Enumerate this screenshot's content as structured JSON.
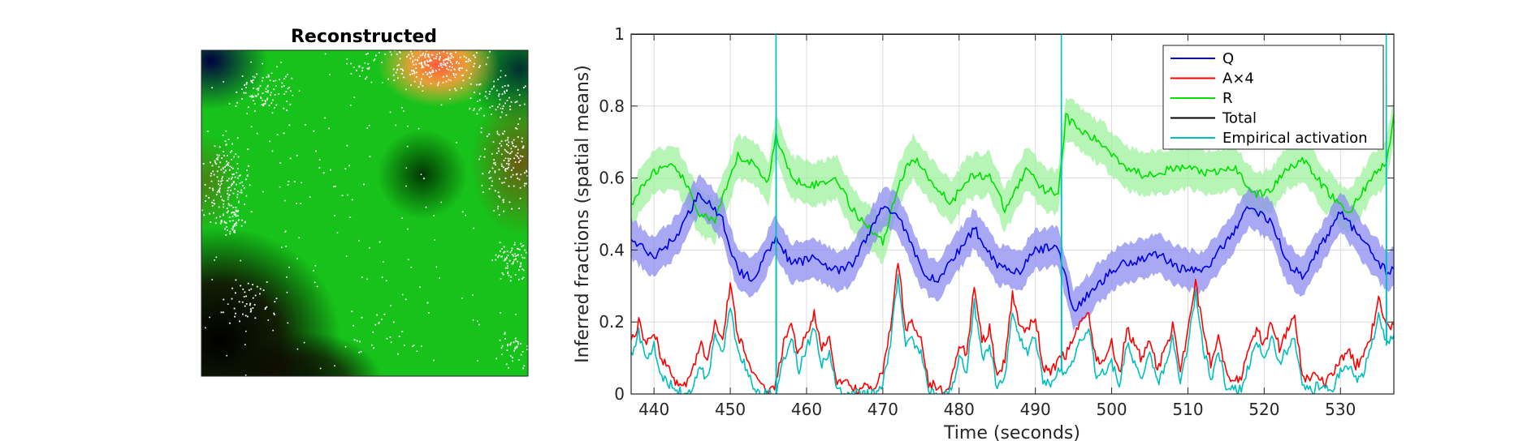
{
  "left_panel": {
    "title": "Reconstructed",
    "colors": {
      "dominant": "#17c21a",
      "hotspot": "#ff7a3a",
      "dark": "#000000",
      "dots": "#ffffff"
    }
  },
  "chart_data": {
    "type": "line",
    "xlabel": "Time (seconds)",
    "ylabel": "Inferred fractions (spatial means)",
    "xlim": [
      437,
      537
    ],
    "ylim": [
      0,
      1
    ],
    "xticks": [
      440,
      450,
      460,
      470,
      480,
      490,
      500,
      510,
      520,
      530
    ],
    "yticks": [
      0,
      0.2,
      0.4,
      0.6,
      0.8,
      1
    ],
    "ytick_labels": [
      "0",
      "0.2",
      "0.4",
      "0.6",
      "0.8",
      "1"
    ],
    "grid": true,
    "legend_position": "top-right",
    "series": [
      {
        "name": "Q",
        "color": "#0000e0",
        "band_color": "#8b8bf0",
        "band_width": 0.055,
        "x": [
          437,
          440,
          443,
          446,
          449,
          451,
          453,
          456,
          458,
          461,
          464,
          466,
          470,
          472,
          475,
          477,
          480,
          482,
          485,
          488,
          490,
          493,
          495,
          498,
          501,
          503,
          506,
          509,
          512,
          515,
          518,
          521,
          523,
          525,
          528,
          530,
          533,
          536,
          537
        ],
        "y": [
          0.43,
          0.38,
          0.44,
          0.56,
          0.48,
          0.34,
          0.32,
          0.44,
          0.36,
          0.38,
          0.34,
          0.36,
          0.52,
          0.5,
          0.35,
          0.31,
          0.4,
          0.46,
          0.36,
          0.34,
          0.4,
          0.41,
          0.23,
          0.3,
          0.36,
          0.37,
          0.39,
          0.35,
          0.34,
          0.42,
          0.52,
          0.48,
          0.36,
          0.33,
          0.43,
          0.51,
          0.42,
          0.34,
          0.35
        ]
      },
      {
        "name": "A×4",
        "color": "#ff0000",
        "x": [
          437,
          438,
          439,
          440,
          441,
          442,
          443,
          444,
          445,
          446,
          447,
          448,
          449,
          450,
          451,
          452,
          453,
          454,
          455,
          456,
          457,
          458,
          459,
          460,
          461,
          462,
          463,
          464,
          465,
          466,
          467,
          468,
          469,
          470,
          471,
          472,
          473,
          474,
          475,
          476,
          477,
          478,
          479,
          480,
          481,
          482,
          483,
          484,
          485,
          486,
          487,
          488,
          489,
          490,
          491,
          492,
          493,
          494,
          495,
          496,
          497,
          498,
          499,
          500,
          501,
          502,
          503,
          504,
          505,
          506,
          507,
          508,
          509,
          510,
          511,
          512,
          513,
          514,
          515,
          516,
          517,
          518,
          519,
          520,
          521,
          522,
          523,
          524,
          525,
          526,
          527,
          528,
          529,
          530,
          531,
          532,
          533,
          534,
          535,
          536,
          537
        ],
        "y": [
          0.14,
          0.2,
          0.13,
          0.18,
          0.09,
          0.07,
          0.03,
          0.02,
          0.06,
          0.14,
          0.1,
          0.2,
          0.16,
          0.3,
          0.16,
          0.12,
          0.05,
          0.02,
          0.01,
          0.03,
          0.14,
          0.19,
          0.11,
          0.17,
          0.22,
          0.12,
          0.16,
          0.03,
          0.03,
          0.02,
          0.01,
          0.02,
          0.01,
          0.07,
          0.18,
          0.37,
          0.18,
          0.2,
          0.16,
          0.03,
          0.02,
          0.01,
          0.04,
          0.14,
          0.11,
          0.3,
          0.14,
          0.18,
          0.04,
          0.09,
          0.28,
          0.19,
          0.18,
          0.21,
          0.08,
          0.05,
          0.1,
          0.11,
          0.15,
          0.2,
          0.22,
          0.09,
          0.1,
          0.14,
          0.05,
          0.18,
          0.14,
          0.09,
          0.16,
          0.07,
          0.12,
          0.19,
          0.06,
          0.18,
          0.31,
          0.18,
          0.08,
          0.17,
          0.06,
          0.04,
          0.05,
          0.12,
          0.18,
          0.14,
          0.2,
          0.13,
          0.17,
          0.21,
          0.05,
          0.04,
          0.06,
          0.03,
          0.06,
          0.1,
          0.12,
          0.08,
          0.1,
          0.16,
          0.27,
          0.18,
          0.19
        ]
      },
      {
        "name": "R",
        "color": "#00e000",
        "band_color": "#9ef29e",
        "band_width": 0.06,
        "x": [
          437,
          440,
          443,
          446,
          448,
          451,
          453,
          455,
          456,
          458,
          461,
          464,
          466,
          468,
          470,
          472,
          474,
          476,
          479,
          481,
          484,
          486,
          489,
          491,
          493,
          494,
          496,
          499,
          502,
          504,
          507,
          510,
          513,
          516,
          519,
          521,
          523,
          525,
          528,
          531,
          534,
          536,
          537
        ],
        "y": [
          0.53,
          0.62,
          0.63,
          0.5,
          0.48,
          0.66,
          0.64,
          0.59,
          0.72,
          0.6,
          0.58,
          0.6,
          0.51,
          0.47,
          0.42,
          0.58,
          0.66,
          0.6,
          0.53,
          0.6,
          0.61,
          0.51,
          0.63,
          0.57,
          0.56,
          0.77,
          0.73,
          0.69,
          0.63,
          0.61,
          0.62,
          0.63,
          0.61,
          0.63,
          0.55,
          0.57,
          0.63,
          0.65,
          0.57,
          0.5,
          0.6,
          0.64,
          0.77
        ]
      },
      {
        "name": "Total",
        "color": "#000000",
        "x": [
          437,
          537
        ],
        "y": [
          1,
          1
        ]
      },
      {
        "name": "Empirical activation",
        "color": "#00bfbf",
        "x": [
          437,
          438,
          439,
          440,
          441,
          442,
          443,
          444,
          445,
          446,
          447,
          448,
          449,
          450,
          451,
          452,
          453,
          454,
          455,
          456,
          457,
          458,
          459,
          460,
          461,
          462,
          463,
          464,
          465,
          466,
          467,
          468,
          469,
          470,
          471,
          472,
          473,
          474,
          475,
          476,
          477,
          478,
          479,
          480,
          481,
          482,
          483,
          484,
          485,
          486,
          487,
          488,
          489,
          490,
          491,
          492,
          493,
          494,
          495,
          496,
          497,
          498,
          499,
          500,
          501,
          502,
          503,
          504,
          505,
          506,
          507,
          508,
          509,
          510,
          511,
          512,
          513,
          514,
          515,
          516,
          517,
          518,
          519,
          520,
          521,
          522,
          523,
          524,
          525,
          526,
          527,
          528,
          529,
          530,
          531,
          532,
          533,
          534,
          535,
          536,
          537
        ],
        "y": [
          0.11,
          0.17,
          0.1,
          0.14,
          0.05,
          0.03,
          0.01,
          0.0,
          0.02,
          0.07,
          0.04,
          0.16,
          0.11,
          0.24,
          0.12,
          0.08,
          0.02,
          0.0,
          0.0,
          0.0,
          0.1,
          0.15,
          0.07,
          0.13,
          0.18,
          0.08,
          0.12,
          0.01,
          0.0,
          0.0,
          0.0,
          0.0,
          0.0,
          0.03,
          0.14,
          0.33,
          0.13,
          0.15,
          0.11,
          0.01,
          0.0,
          0.0,
          0.01,
          0.1,
          0.06,
          0.25,
          0.1,
          0.14,
          0.01,
          0.05,
          0.23,
          0.15,
          0.12,
          0.16,
          0.04,
          0.02,
          0.06,
          0.07,
          0.1,
          0.15,
          0.18,
          0.05,
          0.06,
          0.09,
          0.02,
          0.14,
          0.09,
          0.05,
          0.12,
          0.03,
          0.08,
          0.15,
          0.02,
          0.14,
          0.28,
          0.13,
          0.04,
          0.12,
          0.02,
          0.01,
          0.01,
          0.08,
          0.14,
          0.1,
          0.16,
          0.09,
          0.12,
          0.16,
          0.02,
          0.01,
          0.02,
          0.01,
          0.02,
          0.06,
          0.08,
          0.04,
          0.06,
          0.12,
          0.23,
          0.14,
          0.15
        ],
        "spikes": [
          456,
          493.4,
          536
        ]
      }
    ]
  }
}
